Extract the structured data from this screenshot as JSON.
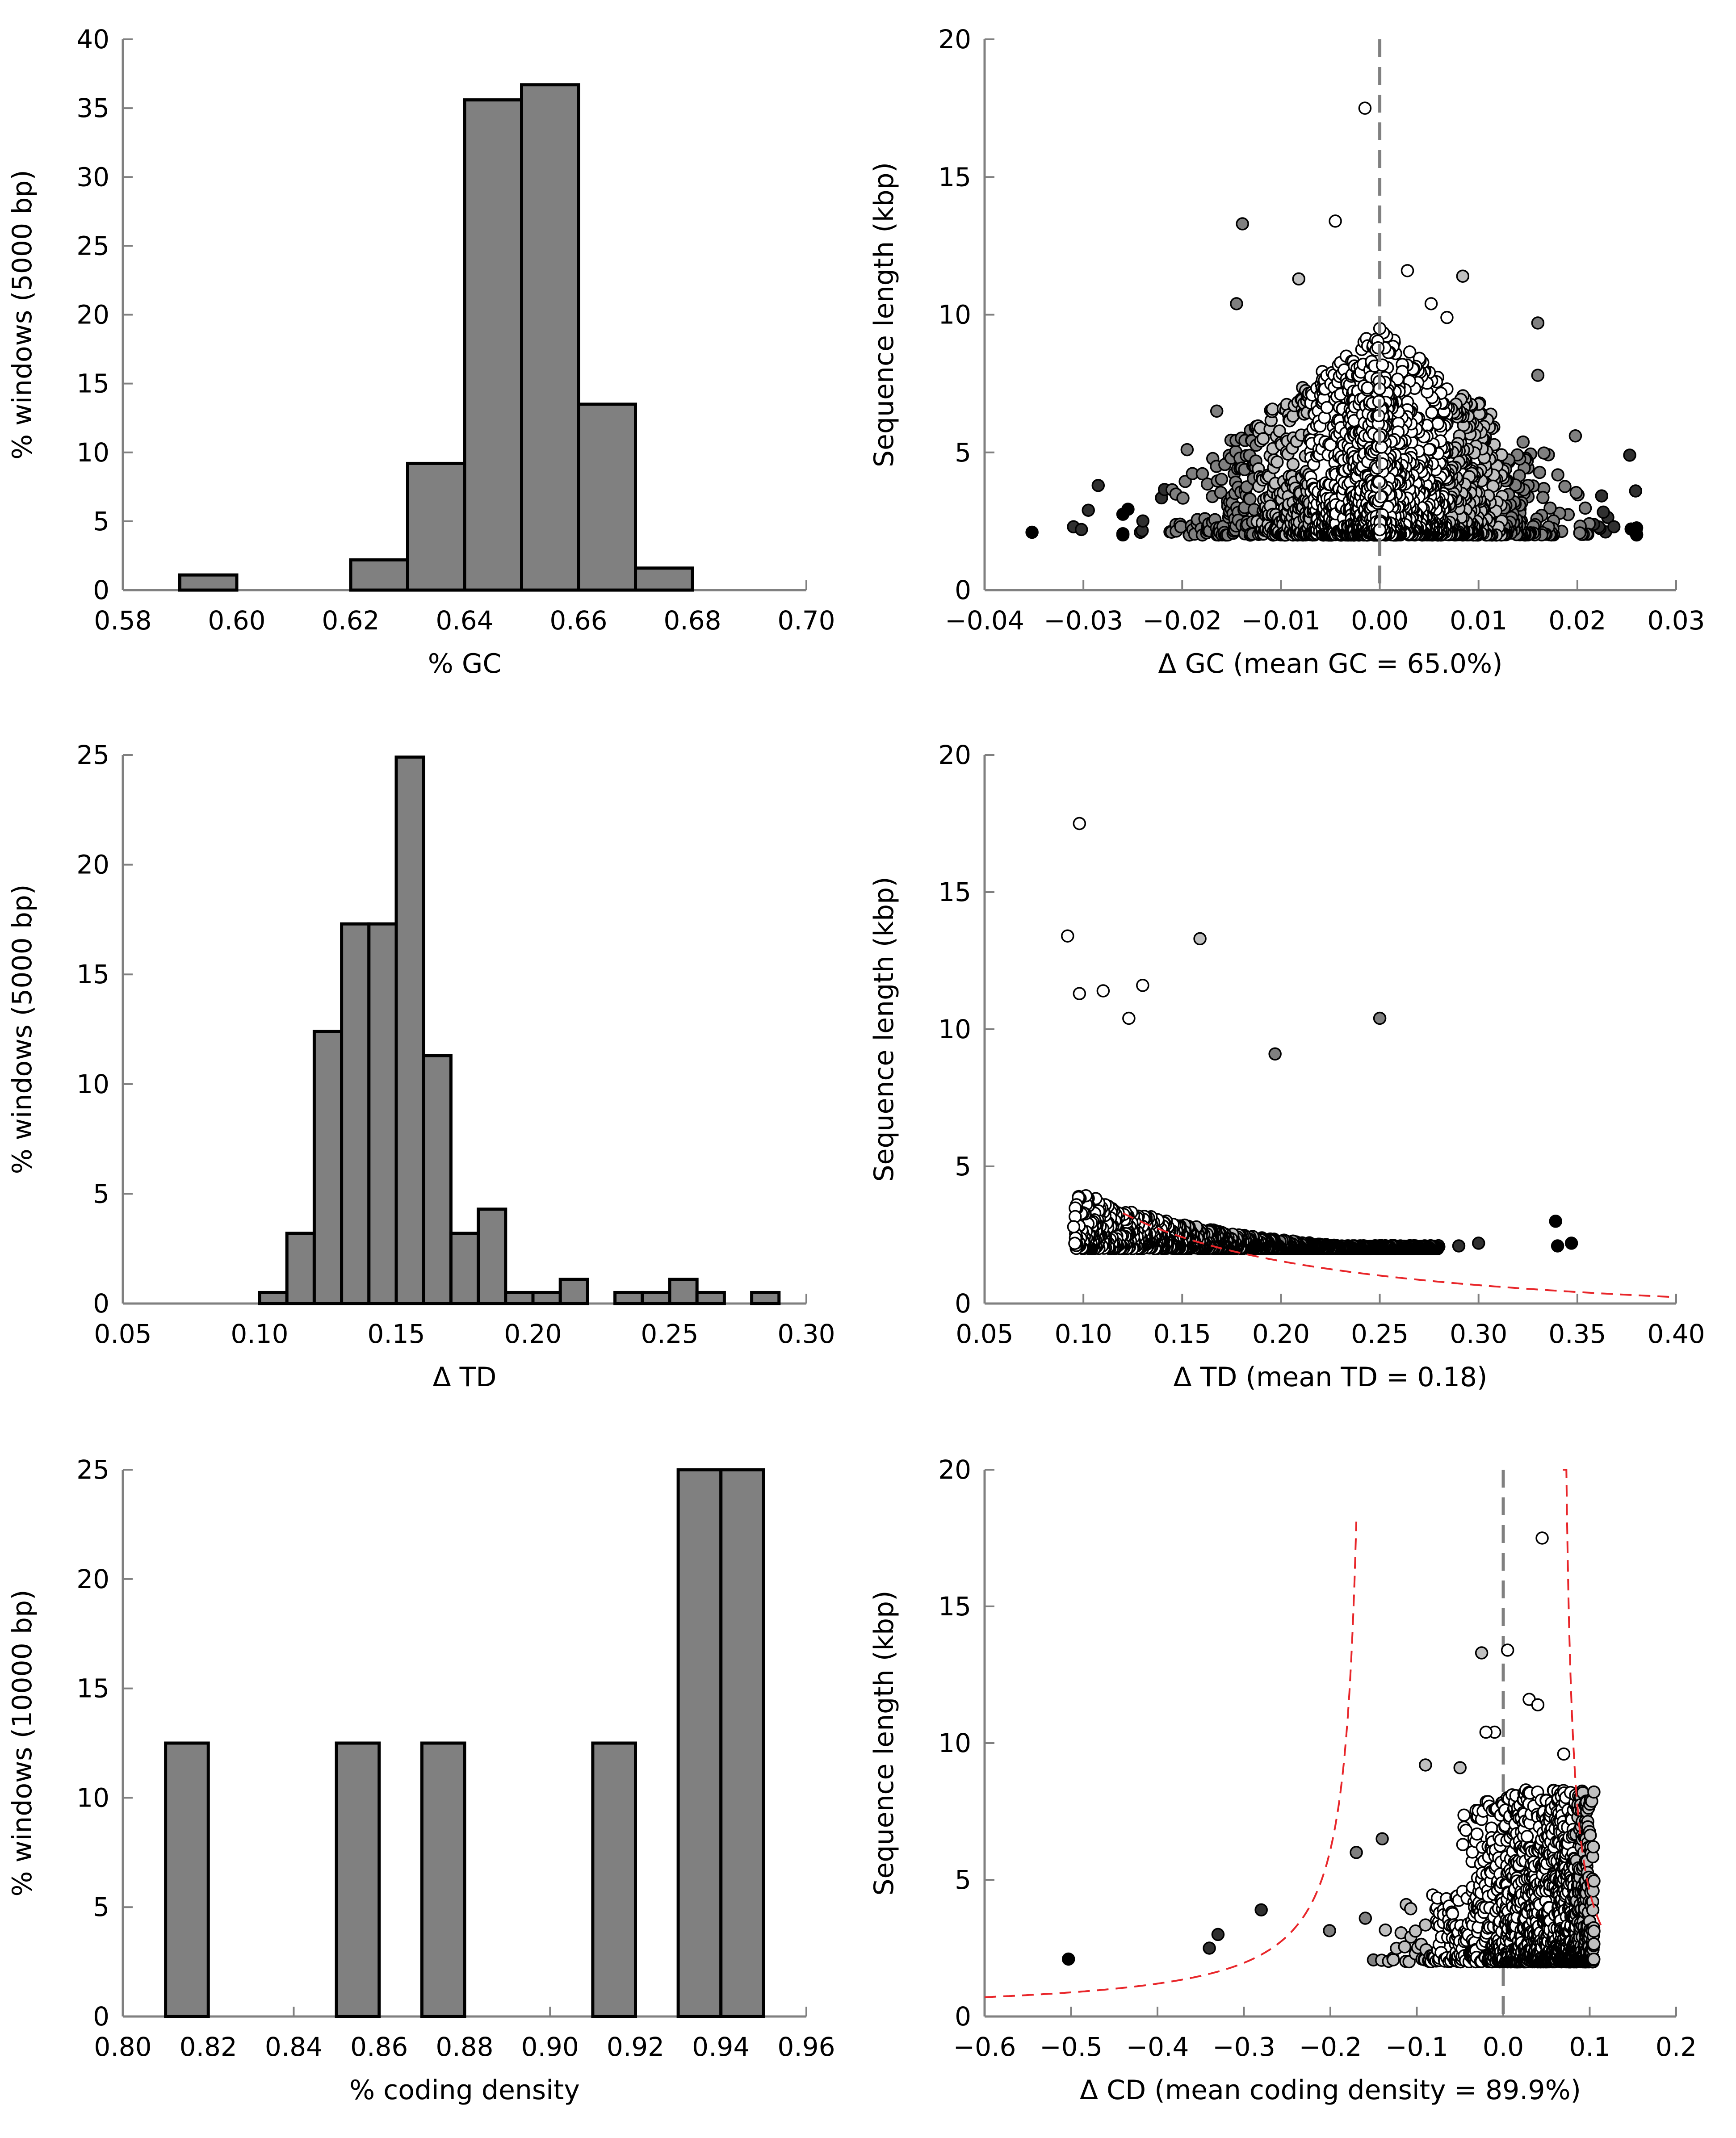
{
  "chart_data": [
    {
      "type": "bar",
      "xlabel": "% GC",
      "ylabel": "% windows (5000 bp)",
      "xlim": [
        0.58,
        0.7
      ],
      "ylim": [
        0,
        40
      ],
      "xticks": [
        "0.58",
        "0.60",
        "0.62",
        "0.64",
        "0.66",
        "0.68",
        "0.70"
      ],
      "yticks": [
        "0",
        "5",
        "10",
        "15",
        "20",
        "25",
        "30",
        "35",
        "40"
      ],
      "bins": [
        {
          "x0": 0.59,
          "x1": 0.6,
          "value": 1.1
        },
        {
          "x0": 0.62,
          "x1": 0.63,
          "value": 2.2
        },
        {
          "x0": 0.63,
          "x1": 0.64,
          "value": 9.2
        },
        {
          "x0": 0.64,
          "x1": 0.65,
          "value": 35.6
        },
        {
          "x0": 0.65,
          "x1": 0.66,
          "value": 36.7
        },
        {
          "x0": 0.66,
          "x1": 0.67,
          "value": 13.5
        },
        {
          "x0": 0.67,
          "x1": 0.68,
          "value": 1.6
        }
      ]
    },
    {
      "type": "scatter",
      "xlabel": "Δ GC (mean GC = 65.0%)",
      "ylabel": "Sequence length (kbp)",
      "xlim": [
        -0.04,
        0.03
      ],
      "ylim": [
        0,
        20
      ],
      "xticks": [
        "−0.04",
        "−0.03",
        "−0.02",
        "−0.01",
        "0.00",
        "0.01",
        "0.02",
        "0.03"
      ],
      "yticks": [
        "0",
        "5",
        "10",
        "15",
        "20"
      ],
      "vline": 0.0,
      "cloud": {
        "x_center": 0.0,
        "x_spread": 0.025,
        "y_min": 2.0,
        "y_max": 9.5,
        "count": 1700
      },
      "points": [
        {
          "x": -0.0015,
          "y": 17.5,
          "shade": "#ffffff"
        },
        {
          "x": -0.0139,
          "y": 13.3,
          "shade": "#808080"
        },
        {
          "x": -0.0045,
          "y": 13.4,
          "shade": "#ffffff"
        },
        {
          "x": -0.0145,
          "y": 10.4,
          "shade": "#808080"
        },
        {
          "x": -0.0082,
          "y": 11.3,
          "shade": "#c0c0c0"
        },
        {
          "x": 0.0028,
          "y": 11.6,
          "shade": "#ffffff"
        },
        {
          "x": 0.0084,
          "y": 11.4,
          "shade": "#c0c0c0"
        },
        {
          "x": 0.0052,
          "y": 10.4,
          "shade": "#ffffff"
        },
        {
          "x": 0.0068,
          "y": 9.9,
          "shade": "#ffffff"
        },
        {
          "x": 0.016,
          "y": 9.7,
          "shade": "#808080"
        },
        {
          "x": 0.0,
          "y": 9.5,
          "shade": "#ffffff"
        },
        {
          "x": -0.0352,
          "y": 2.1,
          "shade": "#000000"
        },
        {
          "x": -0.031,
          "y": 2.3,
          "shade": "#303030"
        },
        {
          "x": -0.0285,
          "y": 3.8,
          "shade": "#303030"
        },
        {
          "x": -0.0295,
          "y": 2.9,
          "shade": "#303030"
        },
        {
          "x": -0.0302,
          "y": 2.2,
          "shade": "#303030"
        },
        {
          "x": 0.0253,
          "y": 4.9,
          "shade": "#303030"
        },
        {
          "x": 0.0259,
          "y": 3.6,
          "shade": "#303030"
        },
        {
          "x": 0.0237,
          "y": 2.3,
          "shade": "#303030"
        },
        {
          "x": 0.016,
          "y": 7.8,
          "shade": "#808080"
        },
        {
          "x": 0.0198,
          "y": 5.6,
          "shade": "#808080"
        },
        {
          "x": -0.0165,
          "y": 6.5,
          "shade": "#808080"
        },
        {
          "x": -0.0195,
          "y": 5.1,
          "shade": "#808080"
        }
      ]
    },
    {
      "type": "bar",
      "xlabel": "Δ TD",
      "ylabel": "% windows (5000 bp)",
      "xlim": [
        0.05,
        0.3
      ],
      "ylim": [
        0,
        25
      ],
      "xticks": [
        "0.05",
        "0.10",
        "0.15",
        "0.20",
        "0.25",
        "0.30"
      ],
      "yticks": [
        "0",
        "5",
        "10",
        "15",
        "20",
        "25"
      ],
      "bins": [
        {
          "x0": 0.1,
          "x1": 0.11,
          "value": 0.5
        },
        {
          "x0": 0.11,
          "x1": 0.12,
          "value": 3.2
        },
        {
          "x0": 0.12,
          "x1": 0.13,
          "value": 12.4
        },
        {
          "x0": 0.13,
          "x1": 0.14,
          "value": 17.3
        },
        {
          "x0": 0.14,
          "x1": 0.15,
          "value": 17.3
        },
        {
          "x0": 0.15,
          "x1": 0.16,
          "value": 24.9
        },
        {
          "x0": 0.16,
          "x1": 0.17,
          "value": 11.3
        },
        {
          "x0": 0.17,
          "x1": 0.18,
          "value": 3.2
        },
        {
          "x0": 0.18,
          "x1": 0.19,
          "value": 4.3
        },
        {
          "x0": 0.19,
          "x1": 0.2,
          "value": 0.5
        },
        {
          "x0": 0.2,
          "x1": 0.21,
          "value": 0.5
        },
        {
          "x0": 0.21,
          "x1": 0.22,
          "value": 1.1
        },
        {
          "x0": 0.23,
          "x1": 0.24,
          "value": 0.5
        },
        {
          "x0": 0.24,
          "x1": 0.25,
          "value": 0.5
        },
        {
          "x0": 0.25,
          "x1": 0.26,
          "value": 1.1
        },
        {
          "x0": 0.26,
          "x1": 0.27,
          "value": 0.5
        },
        {
          "x0": 0.28,
          "x1": 0.29,
          "value": 0.5
        }
      ]
    },
    {
      "type": "scatter",
      "xlabel": "Δ TD (mean TD = 0.18)",
      "ylabel": "Sequence length (kbp)",
      "xlim": [
        0.05,
        0.4
      ],
      "ylim": [
        0,
        20
      ],
      "xticks": [
        "0.05",
        "0.10",
        "0.15",
        "0.20",
        "0.25",
        "0.30",
        "0.35",
        "0.40"
      ],
      "yticks": [
        "0",
        "5",
        "10",
        "15",
        "20"
      ],
      "curve": {
        "kind": "reciprocal",
        "k": 0.525,
        "color": "#e8262a"
      },
      "cloud": {
        "k": 0.62,
        "x_min": 0.095,
        "x_max": 0.28,
        "y_floor": 2.0,
        "count": 1500
      },
      "points": [
        {
          "x": 0.098,
          "y": 17.5,
          "shade": "#ffffff"
        },
        {
          "x": 0.092,
          "y": 13.4,
          "shade": "#ffffff"
        },
        {
          "x": 0.159,
          "y": 13.3,
          "shade": "#c0c0c0"
        },
        {
          "x": 0.13,
          "y": 11.6,
          "shade": "#ffffff"
        },
        {
          "x": 0.098,
          "y": 11.3,
          "shade": "#ffffff"
        },
        {
          "x": 0.11,
          "y": 11.4,
          "shade": "#ffffff"
        },
        {
          "x": 0.25,
          "y": 10.4,
          "shade": "#808080"
        },
        {
          "x": 0.123,
          "y": 10.4,
          "shade": "#ffffff"
        },
        {
          "x": 0.197,
          "y": 9.1,
          "shade": "#808080"
        },
        {
          "x": 0.339,
          "y": 3.0,
          "shade": "#000000"
        },
        {
          "x": 0.34,
          "y": 2.1,
          "shade": "#000000"
        },
        {
          "x": 0.347,
          "y": 2.2,
          "shade": "#000000"
        },
        {
          "x": 0.29,
          "y": 2.1,
          "shade": "#303030"
        },
        {
          "x": 0.3,
          "y": 2.2,
          "shade": "#303030"
        }
      ]
    },
    {
      "type": "bar",
      "xlabel": "% coding density",
      "ylabel": "% windows (10000 bp)",
      "xlim": [
        0.8,
        0.96
      ],
      "ylim": [
        0,
        25
      ],
      "xticks": [
        "0.80",
        "0.82",
        "0.84",
        "0.86",
        "0.88",
        "0.90",
        "0.92",
        "0.94",
        "0.96"
      ],
      "yticks": [
        "0",
        "5",
        "10",
        "15",
        "20",
        "25"
      ],
      "bins": [
        {
          "x0": 0.81,
          "x1": 0.82,
          "value": 12.5
        },
        {
          "x0": 0.85,
          "x1": 0.86,
          "value": 12.5
        },
        {
          "x0": 0.87,
          "x1": 0.88,
          "value": 12.5
        },
        {
          "x0": 0.91,
          "x1": 0.92,
          "value": 12.5
        },
        {
          "x0": 0.93,
          "x1": 0.94,
          "value": 25.0
        },
        {
          "x0": 0.94,
          "x1": 0.95,
          "value": 25.0
        }
      ]
    },
    {
      "type": "scatter",
      "xlabel": "Δ CD (mean coding density = 89.9%)",
      "ylabel": "Sequence length (kbp)",
      "xlim": [
        -0.6,
        0.2
      ],
      "ylim": [
        0,
        20
      ],
      "xticks": [
        "−0.6",
        "−0.5",
        "−0.4",
        "−0.3",
        "−0.2",
        "−0.1",
        "0.0",
        "0.1",
        "0.2"
      ],
      "yticks": [
        "0",
        "5",
        "10",
        "15",
        "20"
      ],
      "vline": 0.0,
      "curves": [
        {
          "kind": "left",
          "asymptote": -0.155,
          "k": 0.27,
          "color": "#e8262a"
        },
        {
          "kind": "right",
          "asymptote": 0.065,
          "end": 0.114,
          "k": 0.08,
          "color": "#e8262a"
        }
      ],
      "cloud": {
        "x_min": -0.25,
        "x_max": 0.105,
        "y_min": 2.0,
        "y_max": 9.0,
        "count": 1500
      },
      "points": [
        {
          "x": 0.045,
          "y": 17.5,
          "shade": "#ffffff"
        },
        {
          "x": 0.005,
          "y": 13.4,
          "shade": "#ffffff"
        },
        {
          "x": -0.025,
          "y": 13.3,
          "shade": "#c0c0c0"
        },
        {
          "x": 0.03,
          "y": 11.6,
          "shade": "#ffffff"
        },
        {
          "x": 0.04,
          "y": 11.4,
          "shade": "#ffffff"
        },
        {
          "x": 0.07,
          "y": 9.6,
          "shade": "#ffffff"
        },
        {
          "x": -0.01,
          "y": 10.4,
          "shade": "#ffffff"
        },
        {
          "x": -0.02,
          "y": 10.4,
          "shade": "#ffffff"
        },
        {
          "x": -0.05,
          "y": 9.1,
          "shade": "#c0c0c0"
        },
        {
          "x": -0.09,
          "y": 9.2,
          "shade": "#c0c0c0"
        },
        {
          "x": -0.503,
          "y": 2.1,
          "shade": "#000000"
        },
        {
          "x": -0.34,
          "y": 2.5,
          "shade": "#303030"
        },
        {
          "x": -0.33,
          "y": 3.0,
          "shade": "#303030"
        },
        {
          "x": -0.28,
          "y": 3.9,
          "shade": "#303030"
        },
        {
          "x": -0.17,
          "y": 6.0,
          "shade": "#808080"
        },
        {
          "x": -0.14,
          "y": 6.5,
          "shade": "#808080"
        }
      ]
    }
  ]
}
